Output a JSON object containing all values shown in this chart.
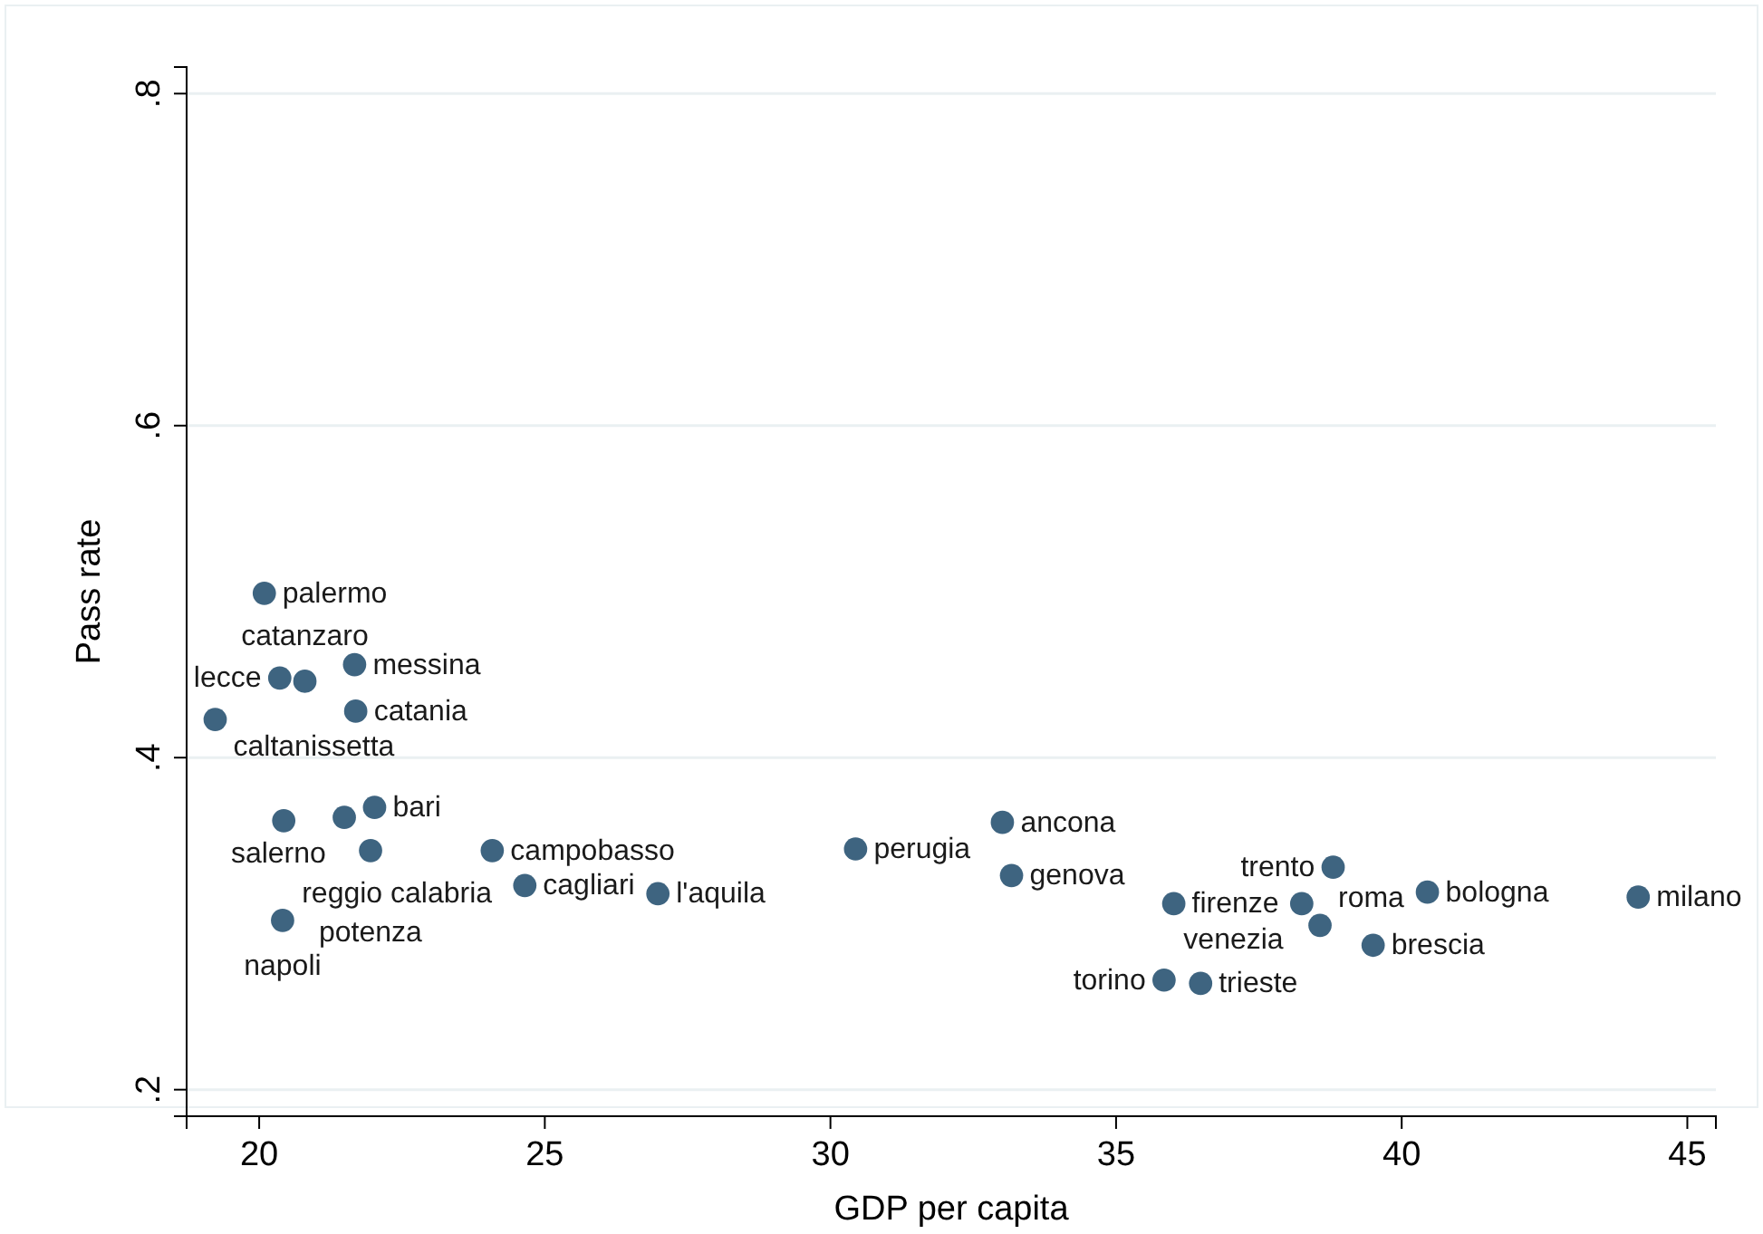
{
  "chart_data": {
    "type": "scatter",
    "xlabel": "GDP per capita",
    "ylabel": "Pass rate",
    "x": [
      20.09,
      20.36,
      20.8,
      21.67,
      21.69,
      19.23,
      20.43,
      21.49,
      22.02,
      21.95,
      24.08,
      24.65,
      26.98,
      20.41,
      30.44,
      33.01,
      33.17,
      38.8,
      36.01,
      38.25,
      38.57,
      40.45,
      39.5,
      44.14,
      35.84,
      36.48
    ],
    "series": [
      {
        "color": "#3e6480",
        "values": [
          0.499,
          0.448,
          0.446,
          0.456,
          0.428,
          0.423,
          0.362,
          0.364,
          0.37,
          0.344,
          0.344,
          0.323,
          0.318,
          0.302,
          0.345,
          0.361,
          0.329,
          0.334,
          0.312,
          0.312,
          0.299,
          0.319,
          0.287,
          0.316,
          0.266,
          0.264
        ]
      }
    ],
    "annotations": [
      {
        "text": "palermo",
        "x": 20.09,
        "y": 0.499
      },
      {
        "text": "lecce",
        "x": 20.36,
        "y": 0.448
      },
      {
        "text": "catanzaro",
        "x": 20.8,
        "y": 0.446
      },
      {
        "text": "messina",
        "x": 21.67,
        "y": 0.456
      },
      {
        "text": "catania",
        "x": 21.69,
        "y": 0.428
      },
      {
        "text": "caltanissetta",
        "x": 19.23,
        "y": 0.423
      },
      {
        "text": "reggio calabria",
        "x": 20.43,
        "y": 0.362
      },
      {
        "text": "salerno",
        "x": 21.49,
        "y": 0.364
      },
      {
        "text": "bari",
        "x": 22.02,
        "y": 0.37
      },
      {
        "text": "potenza",
        "x": 21.95,
        "y": 0.344
      },
      {
        "text": "campobasso",
        "x": 24.08,
        "y": 0.344
      },
      {
        "text": "cagliari",
        "x": 24.65,
        "y": 0.323
      },
      {
        "text": "l'aquila",
        "x": 26.98,
        "y": 0.318
      },
      {
        "text": "napoli",
        "x": 20.41,
        "y": 0.302
      },
      {
        "text": "perugia",
        "x": 30.44,
        "y": 0.345
      },
      {
        "text": "ancona",
        "x": 33.01,
        "y": 0.361
      },
      {
        "text": "genova",
        "x": 33.17,
        "y": 0.329
      },
      {
        "text": "trento",
        "x": 38.8,
        "y": 0.334
      },
      {
        "text": "firenze",
        "x": 36.01,
        "y": 0.312
      },
      {
        "text": "venezia",
        "x": 38.25,
        "y": 0.312
      },
      {
        "text": "roma",
        "x": 38.57,
        "y": 0.299
      },
      {
        "text": "bologna",
        "x": 40.45,
        "y": 0.319
      },
      {
        "text": "brescia",
        "x": 39.5,
        "y": 0.287
      },
      {
        "text": "milano",
        "x": 44.14,
        "y": 0.316
      },
      {
        "text": "torino",
        "x": 35.84,
        "y": 0.266
      },
      {
        "text": "trieste",
        "x": 36.48,
        "y": 0.264
      }
    ],
    "xlim": [
      18.73,
      45.5
    ],
    "xticks": [
      20,
      25,
      30,
      35,
      40,
      45
    ],
    "ylim": [
      0.184,
      0.816
    ],
    "yticks": [
      {
        "value": 0.2,
        "label": ".2"
      },
      {
        "value": 0.4,
        "label": ".4"
      },
      {
        "value": 0.6,
        "label": ".6"
      },
      {
        "value": 0.8,
        "label": ".8"
      }
    ],
    "grid": "y",
    "marker": "circle"
  }
}
